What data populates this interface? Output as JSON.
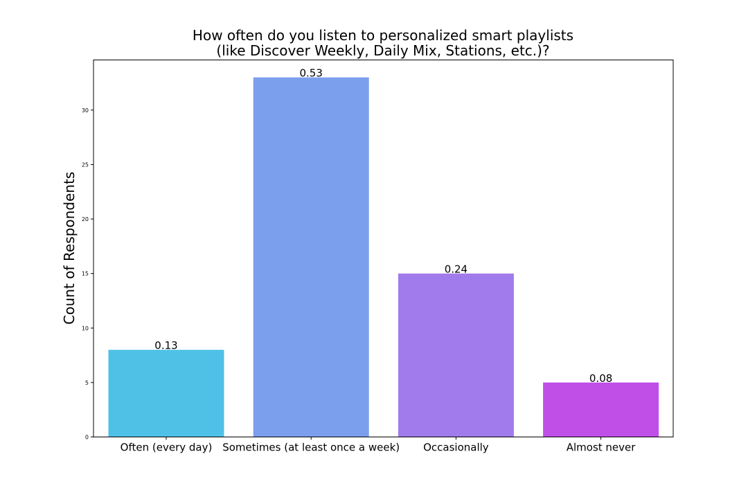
{
  "chart_data": {
    "type": "bar",
    "title_lines": [
      "How often do you listen to personalized smart playlists",
      "(like Discover Weekly, Daily Mix, Stations, etc.)?"
    ],
    "xlabel": "",
    "ylabel": "Count of Respondents",
    "categories": [
      "Often (every day)",
      "Sometimes (at least once a week)",
      "Occasionally",
      "Almost never"
    ],
    "values": [
      8,
      33,
      15,
      5
    ],
    "data_labels": [
      "0.13",
      "0.53",
      "0.24",
      "0.08"
    ],
    "colors": [
      "#4fc1e6",
      "#7b9fec",
      "#a17aeb",
      "#c04fe8"
    ],
    "ylim": [
      0,
      34.6
    ],
    "yticks": [
      0,
      5,
      10,
      15,
      20,
      25,
      30
    ],
    "grid": false,
    "legend": "none"
  }
}
